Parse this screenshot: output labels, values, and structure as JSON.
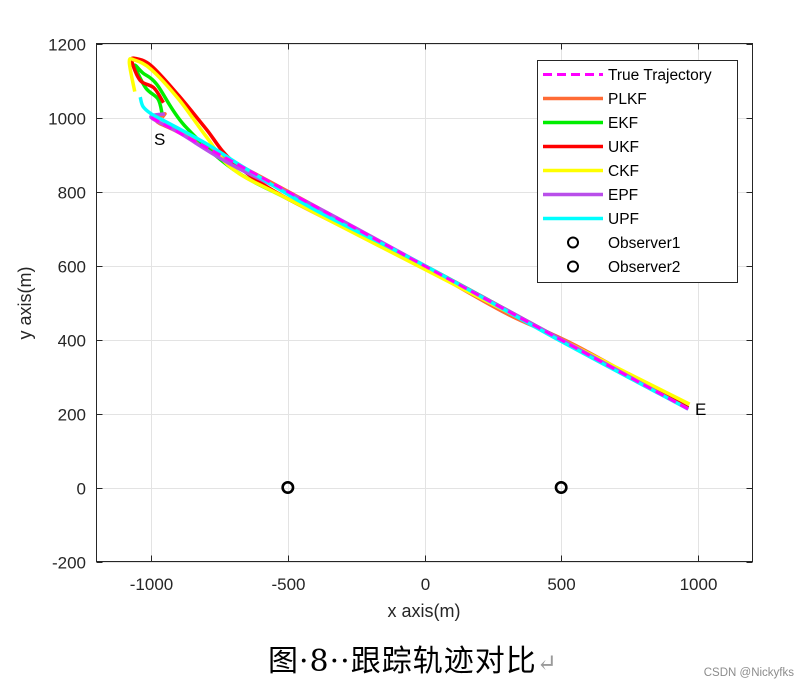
{
  "chart_data": {
    "type": "line",
    "title": "",
    "xlabel": "x axis(m)",
    "ylabel": "y axis(m)",
    "xlim": [
      -1200,
      1200
    ],
    "ylim": [
      -200,
      1200
    ],
    "xticks": [
      -1000,
      -500,
      0,
      500,
      1000
    ],
    "yticks": [
      -200,
      0,
      200,
      400,
      600,
      800,
      1000,
      1200
    ],
    "xtick_labels": [
      "-1000",
      "-500",
      "0",
      "500",
      "1000"
    ],
    "ytick_labels": [
      "-200",
      "0",
      "200",
      "400",
      "600",
      "800",
      "1000",
      "1200"
    ],
    "grid": true,
    "legend_position": "northeast",
    "series": [
      {
        "name": "True Trajectory",
        "color": "#FF00FF",
        "style": "dashed",
        "x": [
          -1000,
          970
        ],
        "y": [
          1000,
          210
        ]
      },
      {
        "name": "PLKF",
        "color": "#FF6B35",
        "style": "solid",
        "x": [
          -960,
          -950,
          -980,
          -900,
          -700,
          -400,
          0,
          300,
          550,
          965
        ],
        "y": [
          1000,
          1010,
          990,
          960,
          880,
          760,
          595,
          470,
          385,
          215
        ]
      },
      {
        "name": "EKF",
        "color": "#00EE00",
        "style": "solid",
        "x": [
          -960,
          -975,
          -1020,
          -1060,
          -1030,
          -980,
          -880,
          -700,
          -500,
          -200,
          0,
          500,
          965
        ],
        "y": [
          1010,
          1050,
          1080,
          1140,
          1120,
          1090,
          980,
          860,
          780,
          670,
          600,
          400,
          215
        ]
      },
      {
        "name": "UKF",
        "color": "#FF0000",
        "style": "solid",
        "x": [
          -955,
          -990,
          -1040,
          -1070,
          -1060,
          -1000,
          -900,
          -800,
          -700,
          -500,
          0,
          500,
          965
        ],
        "y": [
          1040,
          1080,
          1100,
          1150,
          1160,
          1140,
          1060,
          970,
          880,
          780,
          595,
          400,
          215
        ]
      },
      {
        "name": "CKF",
        "color": "#FFFF00",
        "style": "solid",
        "x": [
          -1060,
          -1080,
          -1060,
          -1000,
          -900,
          -800,
          -700,
          -500,
          0,
          500,
          970
        ],
        "y": [
          1070,
          1150,
          1155,
          1130,
          1050,
          950,
          860,
          780,
          590,
          400,
          225
        ]
      },
      {
        "name": "EPF",
        "color": "#B94FEA",
        "style": "solid",
        "x": [
          -950,
          -1000,
          -900,
          -700,
          -400,
          0,
          500,
          965
        ],
        "y": [
          1010,
          1000,
          960,
          870,
          760,
          600,
          400,
          212
        ]
      },
      {
        "name": "UPF",
        "color": "#00FFFF",
        "style": "solid",
        "x": [
          -1040,
          -1030,
          -1000,
          -950,
          -800,
          -650,
          -400,
          0,
          500,
          965
        ],
        "y": [
          1055,
          1030,
          1010,
          990,
          930,
          860,
          750,
          600,
          395,
          212
        ]
      },
      {
        "name": "Observer1",
        "marker": "circle",
        "color": "#000000",
        "x": [
          -500
        ],
        "y": [
          0
        ]
      },
      {
        "name": "Observer2",
        "marker": "circle",
        "color": "#000000",
        "x": [
          500
        ],
        "y": [
          0
        ]
      }
    ],
    "annotations": [
      {
        "text": "S",
        "x": -980,
        "y": 950
      },
      {
        "text": "E",
        "x": 1000,
        "y": 215
      }
    ]
  },
  "legend": {
    "items": [
      {
        "label": "True Trajectory",
        "color": "#FF00FF",
        "style": "dashed"
      },
      {
        "label": "PLKF",
        "color": "#FF6B35",
        "style": "solid"
      },
      {
        "label": "EKF",
        "color": "#00EE00",
        "style": "solid"
      },
      {
        "label": "UKF",
        "color": "#FF0000",
        "style": "solid"
      },
      {
        "label": "CKF",
        "color": "#FFFF00",
        "style": "solid"
      },
      {
        "label": "EPF",
        "color": "#B94FEA",
        "style": "solid"
      },
      {
        "label": "UPF",
        "color": "#00FFFF",
        "style": "solid"
      },
      {
        "label": "Observer1",
        "color": "#000000",
        "style": "marker"
      },
      {
        "label": "Observer2",
        "color": "#000000",
        "style": "marker"
      }
    ]
  },
  "annotations": {
    "start": "S",
    "end": "E"
  },
  "caption": {
    "prefix": "图",
    "number": "·8··",
    "text": "跟踪轨迹对比",
    "return_mark": "↵"
  },
  "watermark": "CSDN @Nickyfks"
}
